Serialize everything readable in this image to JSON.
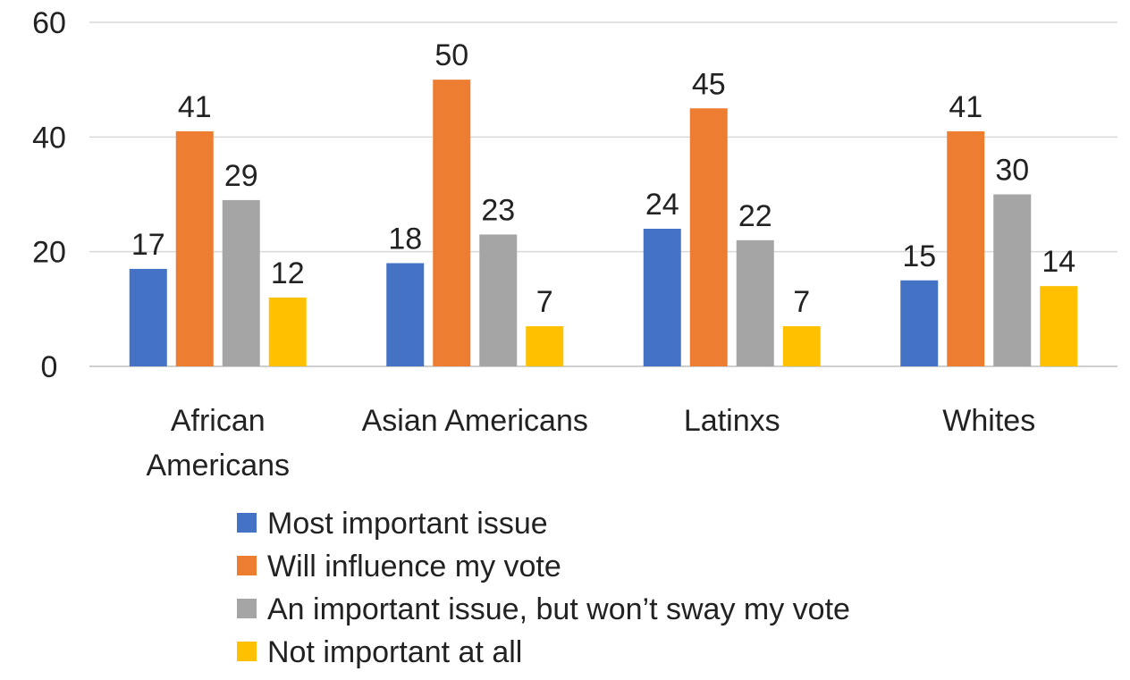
{
  "chart_data": {
    "type": "bar",
    "categories": [
      "African Americans",
      "Asian Americans",
      "Latinxs",
      "Whites"
    ],
    "category_lines": [
      [
        "African",
        "Americans"
      ],
      [
        "Asian Americans"
      ],
      [
        "Latinxs"
      ],
      [
        "Whites"
      ]
    ],
    "series": [
      {
        "name": "Most important issue",
        "values": [
          17,
          18,
          24,
          15
        ],
        "color": "#4472C4"
      },
      {
        "name": "Will influence my vote",
        "values": [
          41,
          50,
          45,
          41
        ],
        "color": "#ED7D31"
      },
      {
        "name": "An important issue, but won’t sway my vote",
        "values": [
          29,
          23,
          22,
          30
        ],
        "color": "#A5A5A5"
      },
      {
        "name": "Not important at all",
        "values": [
          12,
          7,
          7,
          14
        ],
        "color": "#FFC000"
      }
    ],
    "ylim": [
      0,
      60
    ],
    "yticks": [
      0,
      20,
      40,
      60
    ],
    "grid": true,
    "legend_position": "bottom",
    "data_labels": true,
    "title": "",
    "xlabel": "",
    "ylabel": ""
  }
}
